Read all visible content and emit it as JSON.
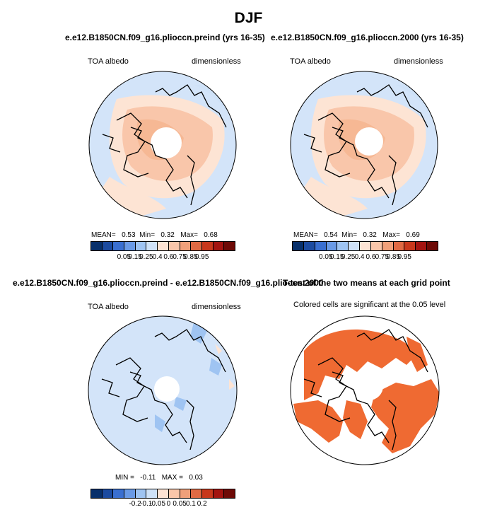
{
  "figure": {
    "title": "DJF",
    "panels": {
      "top_left": {
        "title": "e.e12.B1850CN.f09_g16.plioccn.preind (yrs 16-35)",
        "left_label": "TOA albedo",
        "right_label": "dimensionless",
        "stats": {
          "mean_label": "MEAN=",
          "mean": "0.53",
          "min_label": "Min=",
          "min": "0.32",
          "max_label": "Max=",
          "max": "0.68"
        }
      },
      "top_right": {
        "title": "e.e12.B1850CN.f09_g16.plioccn.2000 (yrs 16-35)",
        "left_label": "TOA albedo",
        "right_label": "dimensionless",
        "stats": {
          "mean_label": "MEAN=",
          "mean": "0.54",
          "min_label": "Min=",
          "min": "0.32",
          "max_label": "Max=",
          "max": "0.69"
        }
      },
      "bottom_left": {
        "title": "e.e12.B1850CN.f09_g16.plioccn.preind - e.e12.B1850CN.f09_g16.plioccn.2000",
        "left_label": "TOA albedo",
        "right_label": "dimensionless",
        "stats": {
          "min_label": "MIN =",
          "min": "-0.11",
          "max_label": "MAX =",
          "max": "0.03"
        }
      },
      "bottom_right": {
        "title": "T-test of the two means at each grid point",
        "subtitle": "Colored cells are significant at the 0.05 level"
      }
    }
  },
  "chart_data": [
    {
      "type": "heatmap",
      "title": "e.e12.B1850CN.f09_g16.plioccn.preind (yrs 16-35)",
      "variable": "TOA albedo",
      "units": "dimensionless",
      "projection": "north-polar-stereographic",
      "mean": 0.53,
      "min": 0.32,
      "max": 0.68,
      "colorbar": {
        "levels": [
          "0.05",
          "0.15",
          "0.25",
          "0.4",
          "0.6",
          "0.75",
          "0.85",
          "0.95"
        ],
        "colors": [
          "#08306b",
          "#1c4ba0",
          "#3a6fd0",
          "#6a9ae6",
          "#9fc4f2",
          "#cfe2f8",
          "#fde4d4",
          "#f9c6aa",
          "#f0a07a",
          "#e06a44",
          "#c8381c",
          "#a31410",
          "#6e0a06"
        ]
      }
    },
    {
      "type": "heatmap",
      "title": "e.e12.B1850CN.f09_g16.plioccn.2000 (yrs 16-35)",
      "variable": "TOA albedo",
      "units": "dimensionless",
      "projection": "north-polar-stereographic",
      "mean": 0.54,
      "min": 0.32,
      "max": 0.69,
      "colorbar": {
        "levels": [
          "0.05",
          "0.15",
          "0.25",
          "0.4",
          "0.6",
          "0.75",
          "0.85",
          "0.95"
        ],
        "colors": [
          "#08306b",
          "#1c4ba0",
          "#3a6fd0",
          "#6a9ae6",
          "#9fc4f2",
          "#cfe2f8",
          "#fde4d4",
          "#f9c6aa",
          "#f0a07a",
          "#e06a44",
          "#c8381c",
          "#a31410",
          "#6e0a06"
        ]
      }
    },
    {
      "type": "heatmap",
      "title": "e.e12.B1850CN.f09_g16.plioccn.preind - e.e12.B1850CN.f09_g16.plioccn.2000",
      "variable": "TOA albedo",
      "units": "dimensionless",
      "projection": "north-polar-stereographic",
      "min": -0.11,
      "max": 0.03,
      "colorbar": {
        "levels": [
          "-0.2",
          "-0.1",
          "-0.05",
          "0",
          "0.05",
          "0.1",
          "0.2"
        ],
        "colors": [
          "#08306b",
          "#1c4ba0",
          "#3a6fd0",
          "#6a9ae6",
          "#9fc4f2",
          "#cfe2f8",
          "#fde4d4",
          "#f9c6aa",
          "#f0a07a",
          "#e06a44",
          "#c8381c",
          "#a31410",
          "#6e0a06"
        ]
      }
    },
    {
      "type": "heatmap",
      "title": "T-test of the two means at each grid point",
      "subtitle": "Colored cells are significant at the 0.05 level",
      "projection": "north-polar-stereographic",
      "significant_color": "#ef6a32"
    }
  ]
}
